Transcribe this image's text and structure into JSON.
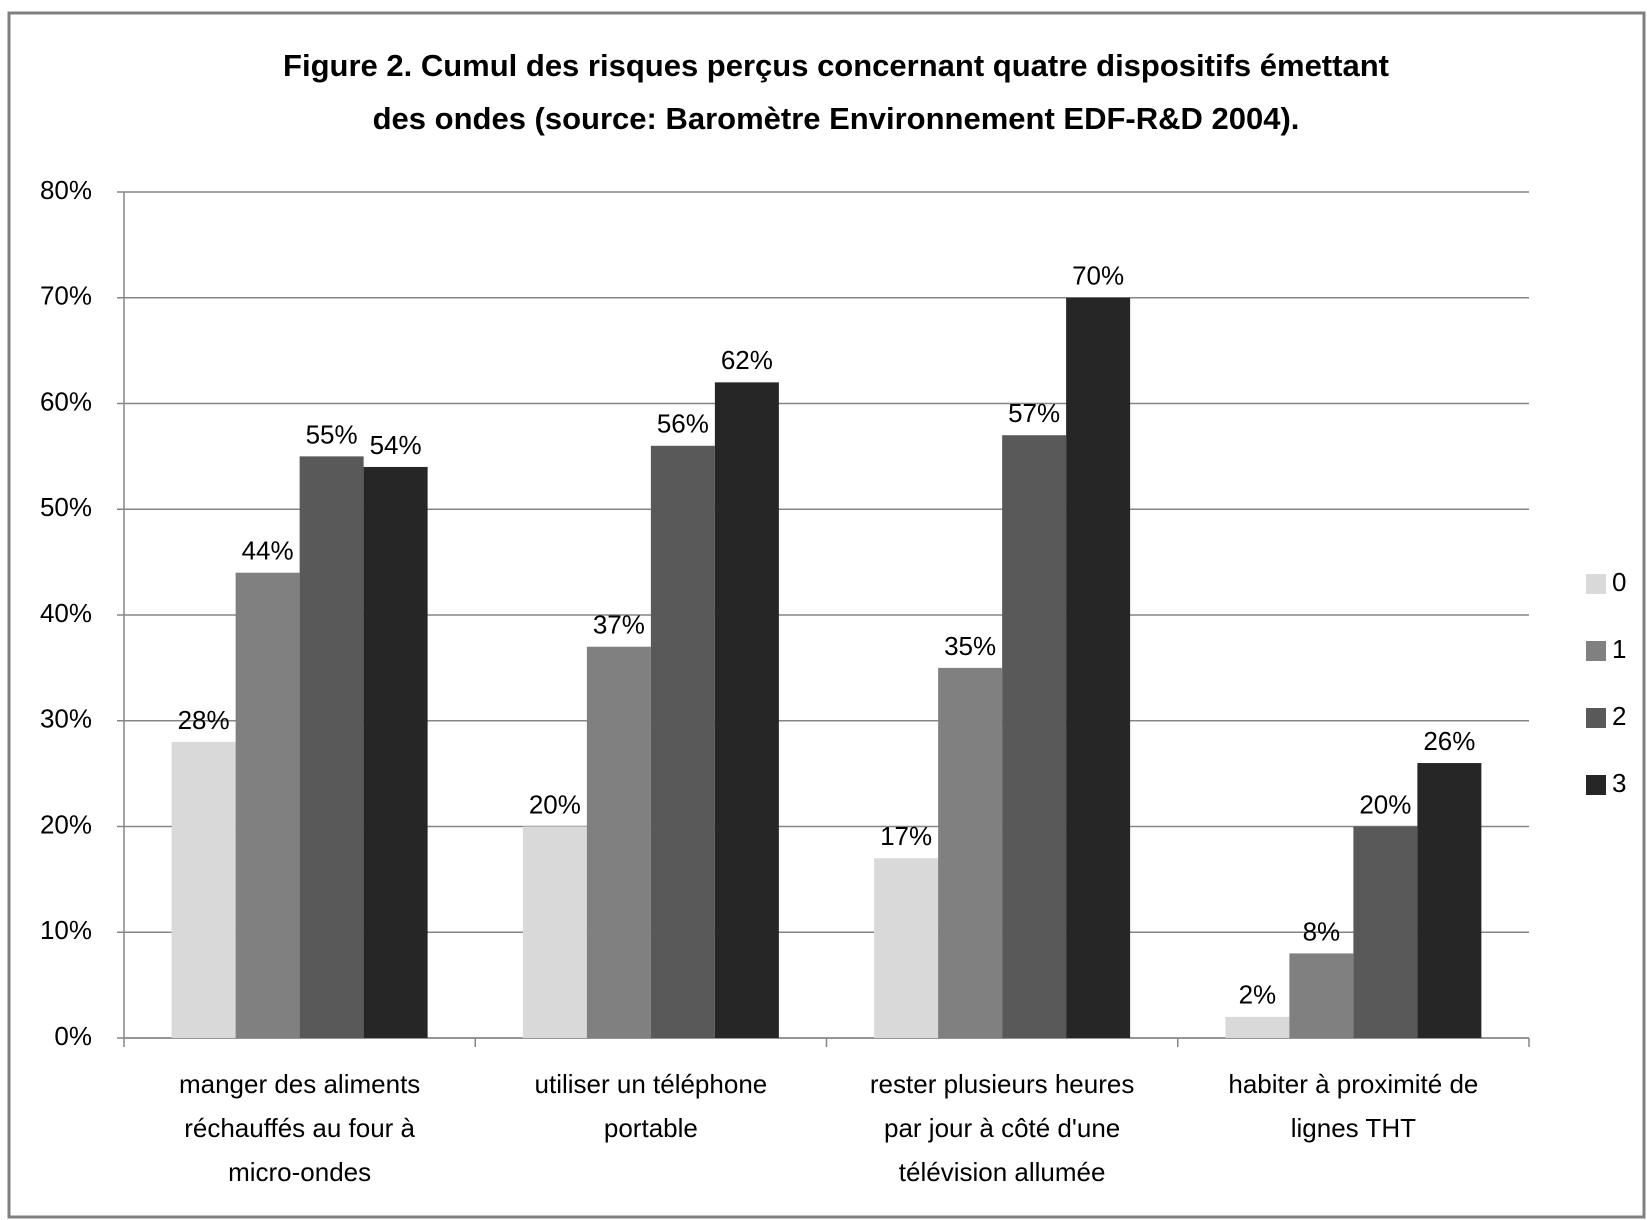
{
  "chart_data": {
    "type": "bar",
    "title": [
      "Figure 2. Cumul des risques perçus concernant quatre dispositifs émettant",
      "des ondes (source: Baromètre Environnement  EDF-R&D 2004)."
    ],
    "categories": [
      [
        "manger des aliments",
        "réchauffés au four à",
        "micro-ondes"
      ],
      [
        "utiliser un téléphone",
        "portable"
      ],
      [
        "rester plusieurs heures",
        "par jour à côté d'une",
        "télévision allumée"
      ],
      [
        "habiter à proximité de",
        "lignes THT"
      ]
    ],
    "series": [
      {
        "name": "0",
        "color": "#d9d9d9",
        "values": [
          28,
          20,
          17,
          2
        ],
        "value_labels": [
          "28%",
          "20%",
          "17%",
          "2%"
        ]
      },
      {
        "name": "1",
        "color": "#808080",
        "values": [
          44,
          37,
          35,
          8
        ],
        "value_labels": [
          "44%",
          "37%",
          "35%",
          "8%"
        ]
      },
      {
        "name": "2",
        "color": "#595959",
        "values": [
          55,
          56,
          57,
          20
        ],
        "value_labels": [
          "55%",
          "56%",
          "57%",
          "20%"
        ]
      },
      {
        "name": "3",
        "color": "#262626",
        "values": [
          54,
          62,
          70,
          26
        ],
        "value_labels": [
          "54%",
          "62%",
          "70%",
          "26%"
        ]
      }
    ],
    "ylim": [
      0,
      80
    ],
    "yticks": [
      {
        "value": 0,
        "label": "0%"
      },
      {
        "value": 10,
        "label": "10%"
      },
      {
        "value": 20,
        "label": "20%"
      },
      {
        "value": 30,
        "label": "30%"
      },
      {
        "value": 40,
        "label": "40%"
      },
      {
        "value": 50,
        "label": "50%"
      },
      {
        "value": 60,
        "label": "60%"
      },
      {
        "value": 70,
        "label": "70%"
      },
      {
        "value": 80,
        "label": "80%"
      }
    ],
    "grid": true,
    "legend": "right"
  }
}
